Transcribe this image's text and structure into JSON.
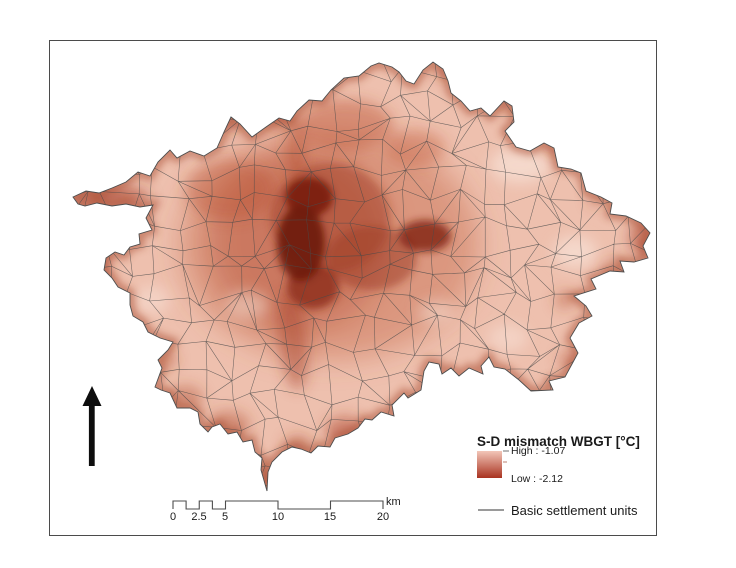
{
  "legend": {
    "title": "S-D mismatch WBGT [°C]",
    "high_label": "High : -1.07",
    "low_label": "Low : -2.12",
    "units_line_label": "Basic settlement units",
    "values": {
      "high": -1.07,
      "low": -2.12
    },
    "ramp_high_color": "#f2c6b8",
    "ramp_low_color": "#a93321"
  },
  "scale_bar": {
    "tick_labels": [
      "0",
      "2.5",
      "5",
      "10",
      "15",
      "20"
    ],
    "unit_label": "km"
  },
  "map": {
    "base_color": "#eec0ae",
    "darkest_color": "#701a0c",
    "settlement_line_color": "#4a4a4a",
    "boundary_line_color": "#4d4d4d"
  }
}
